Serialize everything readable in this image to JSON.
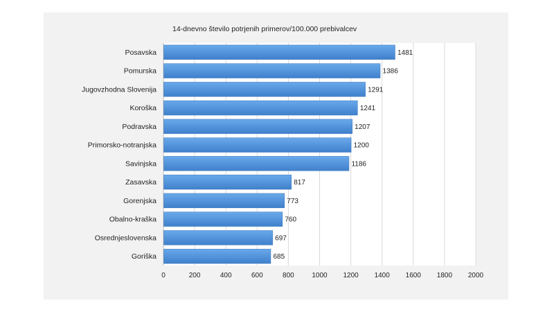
{
  "chart_data": {
    "type": "bar",
    "orientation": "horizontal",
    "title": "14-dnevno število potrjenih primerov/100.000 prebivalcev",
    "categories": [
      "Posavska",
      "Pomurska",
      "Jugovzhodna Slovenija",
      "Koroška",
      "Podravska",
      "Primorsko-notranjska",
      "Savinjska",
      "Zasavska",
      "Gorenjska",
      "Obalno-kraška",
      "Osrednjeslovenska",
      "Goriška"
    ],
    "values": [
      1481,
      1386,
      1291,
      1241,
      1207,
      1200,
      1186,
      817,
      773,
      760,
      697,
      685
    ],
    "xlim": [
      0,
      2000
    ],
    "xticks": [
      0,
      200,
      400,
      600,
      800,
      1000,
      1200,
      1400,
      1600,
      1800,
      2000
    ],
    "grid": "vertical",
    "legend": "none",
    "bar_color": "#4a8fd8"
  }
}
